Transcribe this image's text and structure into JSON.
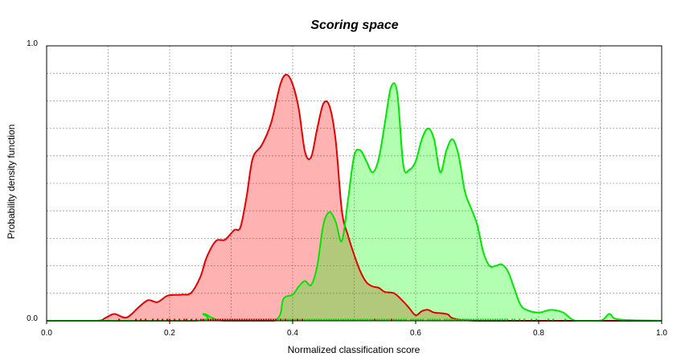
{
  "chart_data": {
    "type": "area",
    "title": "Scoring space",
    "xlabel": "Normalized classification score",
    "ylabel": "Probability density function",
    "xlim": [
      0.0,
      1.0
    ],
    "ylim": [
      0.0,
      1.0
    ],
    "x_ticks": [
      "0.0",
      "0.2",
      "0.4",
      "0.6",
      "0.8",
      "1.0"
    ],
    "x_tick_values": [
      0.0,
      0.2,
      0.4,
      0.6,
      0.8,
      1.0
    ],
    "y_ticks": [
      "0.0",
      "1.0"
    ],
    "y_tick_values": [
      0.0,
      1.0
    ],
    "x_grid": [
      0.1,
      0.2,
      0.3,
      0.4,
      0.5,
      0.6,
      0.7,
      0.8,
      0.9
    ],
    "y_grid": [
      0.1,
      0.2,
      0.3,
      0.4,
      0.5,
      0.6,
      0.7,
      0.8,
      0.9
    ],
    "grid": true,
    "series": [
      {
        "color": "#e60000",
        "fill": "#ff0000",
        "x": [
          0.0,
          0.08,
          0.095,
          0.11,
          0.13,
          0.15,
          0.165,
          0.18,
          0.195,
          0.205,
          0.22,
          0.235,
          0.25,
          0.26,
          0.275,
          0.29,
          0.305,
          0.315,
          0.325,
          0.335,
          0.35,
          0.365,
          0.38,
          0.39,
          0.4,
          0.41,
          0.42,
          0.43,
          0.44,
          0.45,
          0.46,
          0.47,
          0.48,
          0.49,
          0.5,
          0.51,
          0.52,
          0.53,
          0.54,
          0.55,
          0.565,
          0.58,
          0.59,
          0.6,
          0.61,
          0.62,
          0.63,
          0.65,
          0.7,
          1.0
        ],
        "y": [
          0.0,
          0.0,
          0.01,
          0.025,
          0.012,
          0.05,
          0.075,
          0.068,
          0.09,
          0.094,
          0.095,
          0.102,
          0.16,
          0.23,
          0.29,
          0.295,
          0.33,
          0.34,
          0.45,
          0.59,
          0.64,
          0.72,
          0.86,
          0.895,
          0.86,
          0.77,
          0.615,
          0.595,
          0.7,
          0.79,
          0.78,
          0.655,
          0.4,
          0.31,
          0.24,
          0.18,
          0.14,
          0.125,
          0.12,
          0.105,
          0.1,
          0.07,
          0.045,
          0.02,
          0.035,
          0.04,
          0.03,
          0.025,
          0.0,
          0.0
        ]
      },
      {
        "color": "#00e600",
        "fill": "#00ff00",
        "x": [
          0.0,
          0.24,
          0.255,
          0.27,
          0.29,
          0.37,
          0.385,
          0.4,
          0.41,
          0.42,
          0.43,
          0.44,
          0.45,
          0.46,
          0.47,
          0.48,
          0.49,
          0.5,
          0.51,
          0.52,
          0.53,
          0.54,
          0.55,
          0.56,
          0.57,
          0.58,
          0.59,
          0.6,
          0.61,
          0.62,
          0.63,
          0.64,
          0.65,
          0.66,
          0.67,
          0.68,
          0.69,
          0.7,
          0.71,
          0.72,
          0.73,
          0.74,
          0.75,
          0.76,
          0.77,
          0.78,
          0.8,
          0.82,
          0.84,
          0.86,
          0.9,
          0.915,
          0.93,
          1.0
        ],
        "y": [
          0.0,
          0.0,
          0.025,
          0.01,
          0.0,
          0.0,
          0.08,
          0.095,
          0.125,
          0.145,
          0.13,
          0.2,
          0.35,
          0.395,
          0.36,
          0.29,
          0.44,
          0.6,
          0.62,
          0.58,
          0.54,
          0.59,
          0.72,
          0.85,
          0.83,
          0.565,
          0.55,
          0.58,
          0.66,
          0.7,
          0.66,
          0.54,
          0.62,
          0.66,
          0.6,
          0.47,
          0.41,
          0.35,
          0.25,
          0.2,
          0.2,
          0.205,
          0.18,
          0.12,
          0.06,
          0.04,
          0.03,
          0.04,
          0.03,
          0.0,
          0.0,
          0.025,
          0.005,
          0.0
        ]
      }
    ]
  }
}
